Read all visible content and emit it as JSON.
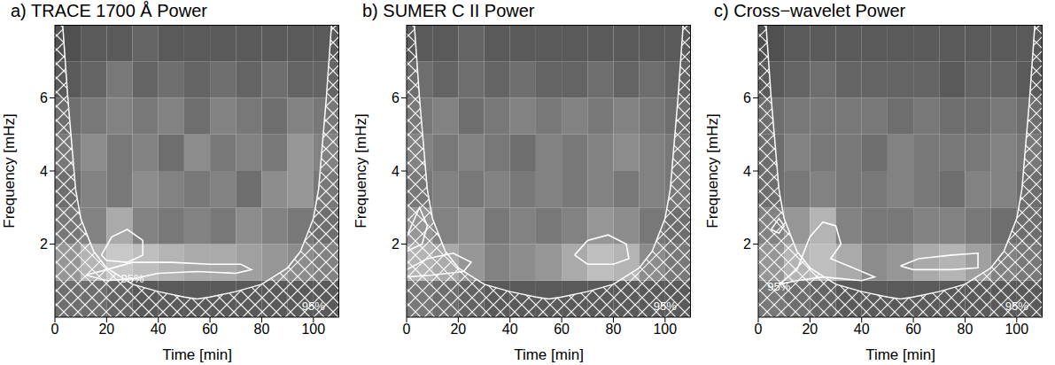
{
  "chart_data": [
    {
      "type": "heatmap",
      "title": "a) TRACE 1700 Å Power",
      "x_label": "Time [min]",
      "y_label": "Frequency [mHz]",
      "xlim": [
        0,
        110
      ],
      "ylim": [
        0,
        8
      ],
      "xticks": [
        0,
        20,
        40,
        60,
        80,
        100
      ],
      "yticks": [
        2,
        4,
        6
      ],
      "x_edges": [
        0,
        10,
        20,
        30,
        40,
        50,
        60,
        70,
        80,
        90,
        100,
        110
      ],
      "y_edges": [
        0,
        1,
        2,
        3,
        4,
        5,
        6,
        7,
        8
      ],
      "cells": [
        [
          0.4,
          0.4,
          0.35,
          0.3,
          0.3,
          0.3,
          0.3,
          0.3,
          0.3,
          0.3,
          0.3
        ],
        [
          0.6,
          0.75,
          0.85,
          0.8,
          0.75,
          0.7,
          0.7,
          0.65,
          0.6,
          0.55,
          0.5
        ],
        [
          0.45,
          0.5,
          0.7,
          0.5,
          0.45,
          0.5,
          0.45,
          0.55,
          0.5,
          0.45,
          0.4
        ],
        [
          0.4,
          0.5,
          0.45,
          0.55,
          0.5,
          0.45,
          0.5,
          0.4,
          0.55,
          0.6,
          0.45
        ],
        [
          0.45,
          0.55,
          0.45,
          0.5,
          0.4,
          0.55,
          0.45,
          0.5,
          0.45,
          0.6,
          0.5
        ],
        [
          0.4,
          0.45,
          0.5,
          0.45,
          0.5,
          0.4,
          0.5,
          0.45,
          0.4,
          0.5,
          0.45
        ],
        [
          0.3,
          0.35,
          0.45,
          0.35,
          0.4,
          0.35,
          0.4,
          0.35,
          0.4,
          0.35,
          0.35
        ],
        [
          0.25,
          0.3,
          0.3,
          0.35,
          0.3,
          0.3,
          0.3,
          0.3,
          0.3,
          0.3,
          0.3
        ]
      ],
      "cone_of_influence": {
        "x": [
          0,
          3,
          5,
          8,
          10,
          15,
          20,
          30,
          40,
          50,
          55,
          60,
          70,
          80,
          90,
          95,
          100,
          102,
          105,
          107,
          110
        ],
        "y": [
          8,
          8,
          6,
          3.5,
          2.7,
          1.8,
          1.35,
          0.9,
          0.7,
          0.55,
          0.5,
          0.55,
          0.7,
          0.9,
          1.35,
          1.8,
          2.7,
          3.5,
          6,
          8,
          8
        ]
      },
      "contours": [
        {
          "x": [
            18,
            22,
            28,
            34,
            34,
            28,
            20,
            18
          ],
          "y": [
            1.7,
            2.2,
            2.4,
            2.1,
            1.7,
            1.5,
            1.55,
            1.7
          ]
        },
        {
          "x": [
            12,
            20,
            30,
            45,
            60,
            72,
            76,
            70,
            55,
            40,
            30,
            20,
            12
          ],
          "y": [
            1.15,
            1.3,
            1.5,
            1.5,
            1.45,
            1.45,
            1.3,
            1.2,
            1.25,
            1.2,
            1.05,
            1.0,
            1.15
          ]
        }
      ],
      "annotations": [
        {
          "text": "95%",
          "x": 30,
          "y": 1.05
        },
        {
          "text": "95%",
          "x": 100,
          "y": 0.3
        }
      ]
    },
    {
      "type": "heatmap",
      "title": "b) SUMER C II Power",
      "x_label": "Time [min]",
      "y_label": "Frequency [mHz]",
      "xlim": [
        0,
        110
      ],
      "ylim": [
        0,
        8
      ],
      "xticks": [
        0,
        20,
        40,
        60,
        80,
        100
      ],
      "yticks": [
        2,
        4,
        6
      ],
      "x_edges": [
        0,
        10,
        20,
        30,
        40,
        50,
        60,
        70,
        80,
        90,
        100,
        110
      ],
      "y_edges": [
        0,
        1,
        2,
        3,
        4,
        5,
        6,
        7,
        8
      ],
      "cells": [
        [
          0.45,
          0.4,
          0.35,
          0.3,
          0.3,
          0.3,
          0.3,
          0.3,
          0.3,
          0.3,
          0.3
        ],
        [
          0.75,
          0.7,
          0.6,
          0.5,
          0.55,
          0.6,
          0.7,
          0.8,
          0.75,
          0.55,
          0.45
        ],
        [
          0.6,
          0.5,
          0.55,
          0.45,
          0.5,
          0.45,
          0.5,
          0.6,
          0.55,
          0.45,
          0.4
        ],
        [
          0.45,
          0.5,
          0.45,
          0.5,
          0.45,
          0.5,
          0.45,
          0.5,
          0.45,
          0.5,
          0.45
        ],
        [
          0.5,
          0.45,
          0.5,
          0.45,
          0.4,
          0.5,
          0.45,
          0.5,
          0.55,
          0.5,
          0.45
        ],
        [
          0.45,
          0.5,
          0.4,
          0.45,
          0.5,
          0.45,
          0.5,
          0.45,
          0.5,
          0.45,
          0.4
        ],
        [
          0.4,
          0.35,
          0.4,
          0.35,
          0.4,
          0.35,
          0.35,
          0.4,
          0.35,
          0.4,
          0.35
        ],
        [
          0.3,
          0.3,
          0.35,
          0.3,
          0.3,
          0.3,
          0.3,
          0.3,
          0.3,
          0.3,
          0.3
        ]
      ],
      "cone_of_influence": {
        "x": [
          0,
          3,
          5,
          8,
          10,
          15,
          20,
          30,
          40,
          50,
          55,
          60,
          70,
          80,
          90,
          95,
          100,
          102,
          105,
          107,
          110
        ],
        "y": [
          8,
          8,
          6,
          3.5,
          2.7,
          1.8,
          1.35,
          0.9,
          0.7,
          0.55,
          0.5,
          0.55,
          0.7,
          0.9,
          1.35,
          1.8,
          2.7,
          3.5,
          6,
          8,
          8
        ]
      },
      "contours": [
        {
          "x": [
            65,
            70,
            78,
            85,
            86,
            80,
            70,
            65
          ],
          "y": [
            1.7,
            2.1,
            2.25,
            2.0,
            1.6,
            1.45,
            1.45,
            1.7
          ]
        },
        {
          "x": [
            0,
            8,
            18,
            25,
            22,
            10,
            0
          ],
          "y": [
            1.3,
            1.6,
            1.75,
            1.5,
            1.25,
            1.15,
            1.1
          ]
        },
        {
          "x": [
            0,
            5,
            8,
            6,
            0
          ],
          "y": [
            2.2,
            3.0,
            2.5,
            2.0,
            1.8
          ]
        }
      ],
      "annotations": [
        {
          "text": "95%",
          "x": 100,
          "y": 0.3
        }
      ]
    },
    {
      "type": "heatmap",
      "title": "c) Cross−wavelet Power",
      "x_label": "Time [min]",
      "y_label": "Frequency [mHz]",
      "xlim": [
        0,
        110
      ],
      "ylim": [
        0,
        8
      ],
      "xticks": [
        0,
        20,
        40,
        60,
        80,
        100
      ],
      "yticks": [
        2,
        4,
        6
      ],
      "x_edges": [
        0,
        10,
        20,
        30,
        40,
        50,
        60,
        70,
        80,
        90,
        100,
        110
      ],
      "y_edges": [
        0,
        1,
        2,
        3,
        4,
        5,
        6,
        7,
        8
      ],
      "cells": [
        [
          0.45,
          0.4,
          0.35,
          0.3,
          0.3,
          0.3,
          0.3,
          0.3,
          0.3,
          0.3,
          0.3
        ],
        [
          0.6,
          0.75,
          0.8,
          0.7,
          0.55,
          0.6,
          0.7,
          0.75,
          0.65,
          0.5,
          0.45
        ],
        [
          0.5,
          0.6,
          0.75,
          0.5,
          0.45,
          0.45,
          0.5,
          0.5,
          0.45,
          0.4,
          0.4
        ],
        [
          0.4,
          0.45,
          0.5,
          0.45,
          0.45,
          0.5,
          0.45,
          0.4,
          0.5,
          0.5,
          0.4
        ],
        [
          0.4,
          0.5,
          0.45,
          0.45,
          0.4,
          0.5,
          0.45,
          0.45,
          0.45,
          0.5,
          0.45
        ],
        [
          0.4,
          0.45,
          0.45,
          0.45,
          0.45,
          0.4,
          0.45,
          0.4,
          0.4,
          0.45,
          0.4
        ],
        [
          0.3,
          0.35,
          0.4,
          0.35,
          0.35,
          0.35,
          0.35,
          0.3,
          0.35,
          0.35,
          0.3
        ],
        [
          0.25,
          0.3,
          0.3,
          0.3,
          0.3,
          0.3,
          0.3,
          0.3,
          0.3,
          0.3,
          0.3
        ]
      ],
      "cone_of_influence": {
        "x": [
          0,
          3,
          5,
          8,
          10,
          15,
          20,
          30,
          40,
          50,
          55,
          60,
          70,
          80,
          90,
          95,
          100,
          102,
          105,
          107,
          110
        ],
        "y": [
          8,
          8,
          6,
          3.5,
          2.7,
          1.8,
          1.35,
          0.9,
          0.7,
          0.55,
          0.5,
          0.55,
          0.7,
          0.9,
          1.35,
          1.8,
          2.7,
          3.5,
          6,
          8,
          8
        ]
      },
      "contours": [
        {
          "x": [
            15,
            20,
            25,
            30,
            32,
            28,
            35,
            45,
            40,
            25,
            15,
            8,
            15
          ],
          "y": [
            1.3,
            2.2,
            2.6,
            2.5,
            2.0,
            1.6,
            1.4,
            1.1,
            1.0,
            1.1,
            1.0,
            0.9,
            1.3
          ]
        },
        {
          "x": [
            55,
            62,
            75,
            85,
            85,
            75,
            60,
            55
          ],
          "y": [
            1.4,
            1.6,
            1.7,
            1.75,
            1.35,
            1.3,
            1.3,
            1.4
          ]
        },
        {
          "x": [
            5,
            8,
            10,
            8,
            5
          ],
          "y": [
            2.4,
            2.7,
            2.5,
            2.3,
            2.4
          ]
        }
      ],
      "annotations": [
        {
          "text": "95%",
          "x": 8,
          "y": 0.85
        },
        {
          "text": "95%",
          "x": 100,
          "y": 0.3
        }
      ]
    }
  ]
}
